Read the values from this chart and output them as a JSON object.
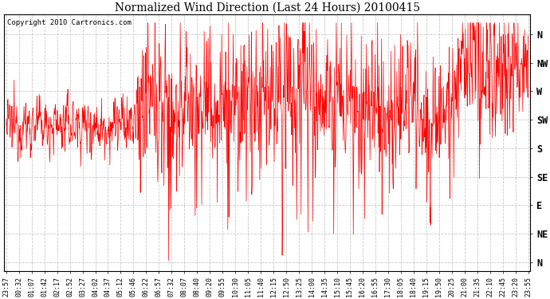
{
  "title": "Normalized Wind Direction (Last 24 Hours) 20100415",
  "copyright_text": "Copyright 2010 Cartronics.com",
  "line_color": "#ff0000",
  "background_color": "#ffffff",
  "grid_color": "#bbbbbb",
  "ytick_labels": [
    "N",
    "NW",
    "W",
    "SW",
    "S",
    "SE",
    "E",
    "NE",
    "N"
  ],
  "ytick_values": [
    8,
    7,
    6,
    5,
    4,
    3,
    2,
    1,
    0
  ],
  "ylim": [
    -0.3,
    8.7
  ],
  "xtick_labels": [
    "23:57",
    "00:32",
    "01:07",
    "01:42",
    "02:17",
    "02:52",
    "03:27",
    "04:02",
    "04:37",
    "05:12",
    "05:46",
    "06:22",
    "06:57",
    "07:32",
    "08:07",
    "08:40",
    "09:20",
    "09:55",
    "10:30",
    "11:05",
    "11:40",
    "12:15",
    "12:50",
    "13:25",
    "14:00",
    "14:35",
    "15:10",
    "15:45",
    "16:20",
    "16:55",
    "17:30",
    "18:05",
    "18:40",
    "19:15",
    "19:50",
    "20:25",
    "21:00",
    "21:35",
    "22:10",
    "22:45",
    "23:20",
    "23:55"
  ],
  "seed": 12345,
  "n_points": 1440,
  "figwidth": 6.9,
  "figheight": 3.75,
  "dpi": 100
}
